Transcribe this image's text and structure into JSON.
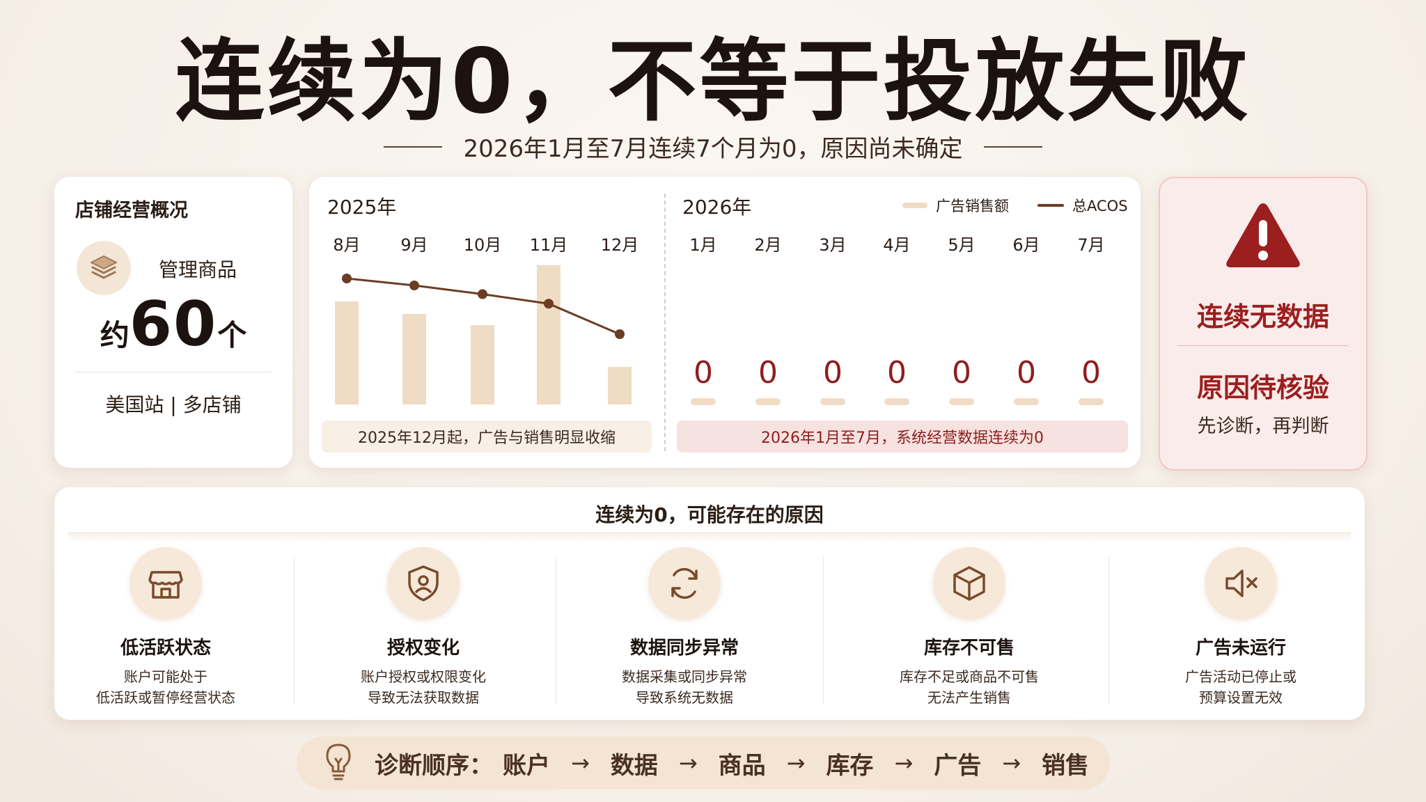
{
  "header": {
    "title": "连续为0，不等于投放失败",
    "subtitle": "2026年1月至7月连续7个月为0，原因尚未确定"
  },
  "store": {
    "title": "店铺经营概况",
    "icon": "layers-icon",
    "manage_label": "管理商品",
    "count_prefix": "约",
    "count_value": "60",
    "count_suffix": "个",
    "region": "美国站 | 多店铺"
  },
  "chart": {
    "year_2025": "2025年",
    "year_2026": "2026年",
    "legend_bar": "广告销售额",
    "legend_line": "总ACOS",
    "months_2025": [
      "8月",
      "9月",
      "10月",
      "11月",
      "12月"
    ],
    "months_2026": [
      "1月",
      "2月",
      "3月",
      "4月",
      "5月",
      "6月",
      "7月"
    ],
    "zeros_2026": [
      "0",
      "0",
      "0",
      "0",
      "0",
      "0",
      "0"
    ],
    "note_2025": "2025年12月起，广告与销售明显收缩",
    "note_2026": "2026年1月至7月，系统经营数据连续为0"
  },
  "chart_data": {
    "type": "bar",
    "categories": [
      "8月",
      "9月",
      "10月",
      "11月",
      "12月",
      "1月",
      "2月",
      "3月",
      "4月",
      "5月",
      "6月",
      "7月"
    ],
    "series": [
      {
        "name": "广告销售额",
        "type": "bar",
        "values": [
          74,
          65,
          57,
          100,
          27,
          0,
          0,
          0,
          0,
          0,
          0,
          0
        ]
      },
      {
        "name": "总ACOS",
        "type": "line",
        "values": [
          100,
          92,
          82,
          71,
          36,
          null,
          null,
          null,
          null,
          null,
          null,
          null
        ]
      }
    ],
    "colors": {
      "bar": "#efdcc4",
      "line": "#6b3d22",
      "zero": "#8f1d1d"
    }
  },
  "alert": {
    "icon": "warning-icon",
    "title": "连续无数据",
    "subtitle": "原因待核验",
    "note": "先诊断，再判断"
  },
  "reasons": {
    "title": "连续为0，可能存在的原因",
    "items": [
      {
        "icon": "store-icon",
        "title": "低活跃状态",
        "desc1": "账户可能处于",
        "desc2": "低活跃或暂停经营状态"
      },
      {
        "icon": "shield-user-icon",
        "title": "授权变化",
        "desc1": "账户授权或权限变化",
        "desc2": "导致无法获取数据"
      },
      {
        "icon": "sync-icon",
        "title": "数据同步异常",
        "desc1": "数据采集或同步异常",
        "desc2": "导致系统无数据"
      },
      {
        "icon": "box-icon",
        "title": "库存不可售",
        "desc1": "库存不足或商品不可售",
        "desc2": "无法产生销售"
      },
      {
        "icon": "mute-icon",
        "title": "广告未运行",
        "desc1": "广告活动已停止或",
        "desc2": "预算设置无效"
      }
    ]
  },
  "diagnosis": {
    "icon": "lightbulb-icon",
    "label": "诊断顺序：",
    "steps": [
      "账户",
      "数据",
      "商品",
      "库存",
      "广告",
      "销售"
    ],
    "arrow": "→"
  }
}
